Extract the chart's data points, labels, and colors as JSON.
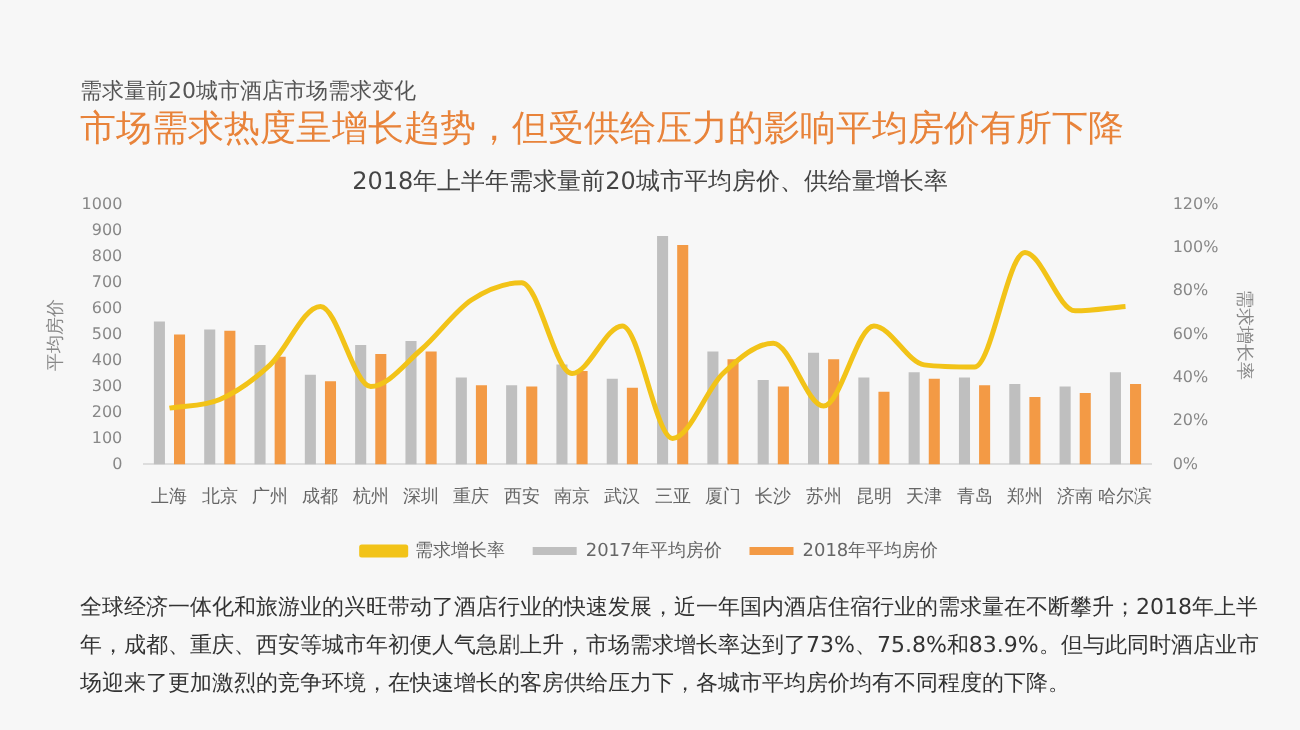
{
  "chart_data": {
    "type": "bar",
    "title": "2018年上半年需求量前20城市平均房价、供给量增长率",
    "annotations": [
      "需求量前20城市酒店市场需求变化",
      "市场需求热度呈增长趋势，但受供给压力的影响平均房价有所下降",
      "全球经济一体化和旅游业的兴旺带动了酒店行业的快速发展，近一年国内酒店住宿行业的需求量在不断攀升；2018年上半年，成都、重庆、西安等城市年初便人气急剧上升，市场需求增长率达到了73%、75.8%和83.9%。但与此同时酒店业市场迎来了更加激烈的竞争环境，在快速增长的客房供给压力下，各城市平均房价均有不同程度的下降。"
    ],
    "ylabel": "平均房价",
    "y2label": "需求增长率",
    "categories": [
      "上海",
      "北京",
      "广州",
      "成都",
      "杭州",
      "深圳",
      "重庆",
      "西安",
      "南京",
      "武汉",
      "三亚",
      "厦门",
      "长沙",
      "苏州",
      "昆明",
      "天津",
      "青岛",
      "郑州",
      "济南",
      "哈尔滨"
    ],
    "series": [
      {
        "name": "2017年平均房价",
        "color": "#bfbfbf",
        "values": [
          550,
          520,
          460,
          345,
          460,
          475,
          335,
          305,
          385,
          330,
          880,
          435,
          325,
          430,
          335,
          355,
          335,
          310,
          300,
          355
        ]
      },
      {
        "name": "2018年平均房价",
        "color": "#f39a45",
        "values": [
          500,
          515,
          415,
          320,
          425,
          435,
          305,
          300,
          360,
          295,
          845,
          405,
          300,
          405,
          280,
          330,
          305,
          260,
          275,
          310
        ]
      },
      {
        "name": "需求增长率",
        "type": "line",
        "axis": "y2",
        "color": "#f2c318",
        "values": [
          26,
          30,
          46,
          73,
          36,
          53,
          76,
          84,
          42,
          64,
          12,
          42,
          56,
          27,
          64,
          46,
          45,
          98,
          71,
          73
        ]
      }
    ],
    "ylim": [
      0,
      1000
    ],
    "yticks": [
      0,
      100,
      200,
      300,
      400,
      500,
      600,
      700,
      800,
      900,
      1000
    ],
    "y2lim": [
      0,
      120
    ],
    "y2ticks": [
      {
        "value": 0,
        "label": "0%"
      },
      {
        "value": 20,
        "label": "20%"
      },
      {
        "value": 40,
        "label": "40%"
      },
      {
        "value": 60,
        "label": "60%"
      },
      {
        "value": 80,
        "label": "80%"
      },
      {
        "value": 100,
        "label": "100%"
      },
      {
        "value": 120,
        "label": "120%"
      }
    ],
    "grid": false,
    "legend": "bottom",
    "marker": "none",
    "line_style": "solid"
  }
}
